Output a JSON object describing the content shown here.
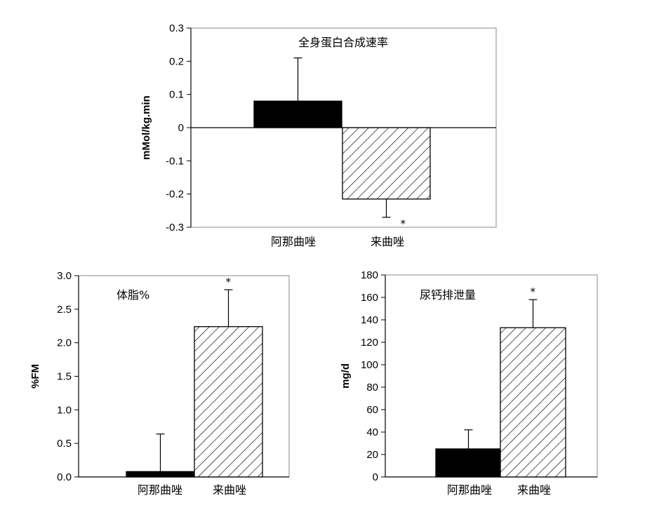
{
  "chart_data": [
    {
      "type": "bar",
      "title": "全身蛋白合成速率",
      "ylabel": "mMol/kg.min",
      "ylim": [
        -0.3,
        0.3
      ],
      "yticks": [
        "0.3",
        "0.2",
        "0.1",
        "0",
        "-0.1",
        "-0.2",
        "-0.3"
      ],
      "categories": [
        "阿那曲唑",
        "来曲唑"
      ],
      "values": [
        0.08,
        -0.215
      ],
      "errors": [
        0.13,
        0.055
      ],
      "significance": [
        "",
        "*"
      ],
      "fills": [
        "solid-black",
        "diagonal-hatch"
      ]
    },
    {
      "type": "bar",
      "title": "体脂%",
      "ylabel": "%FM",
      "ylim": [
        0,
        3.0
      ],
      "yticks": [
        "3.0",
        "2.5",
        "2.0",
        "1.5",
        "1.0",
        "0.5",
        "0.0"
      ],
      "categories": [
        "阿那曲唑",
        "来曲唑"
      ],
      "values": [
        0.08,
        2.24
      ],
      "errors": [
        0.56,
        0.55
      ],
      "significance": [
        "",
        "*"
      ],
      "fills": [
        "solid-black",
        "diagonal-hatch"
      ]
    },
    {
      "type": "bar",
      "title": "尿钙排泄量",
      "ylabel": "mg/d",
      "ylim": [
        0,
        180
      ],
      "yticks": [
        "180",
        "160",
        "140",
        "120",
        "100",
        "80",
        "60",
        "40",
        "20",
        "0"
      ],
      "categories": [
        "阿那曲唑",
        "来曲唑"
      ],
      "values": [
        25,
        133
      ],
      "errors": [
        17,
        25
      ],
      "significance": [
        "",
        "*"
      ],
      "fills": [
        "solid-black",
        "diagonal-hatch"
      ]
    }
  ]
}
